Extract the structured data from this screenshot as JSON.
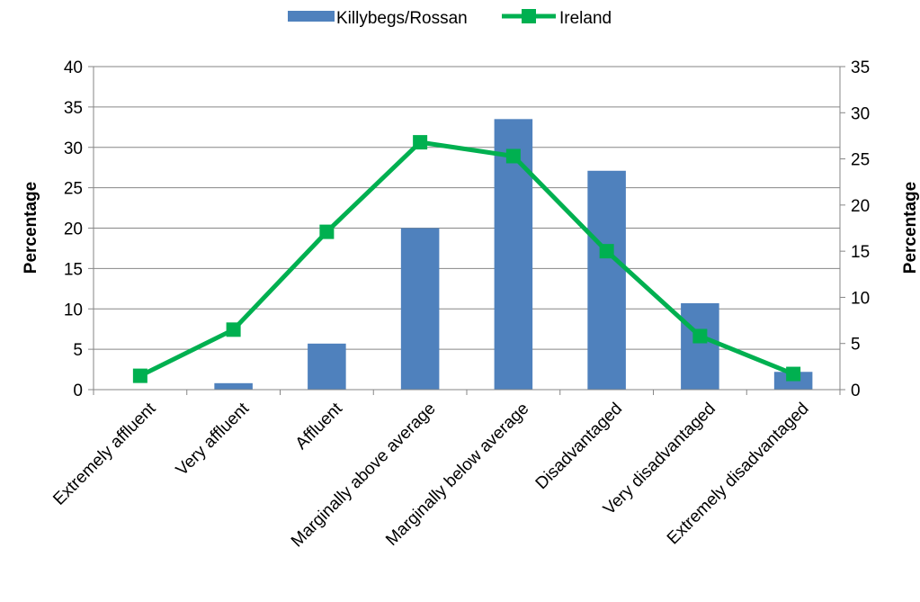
{
  "chart_data": {
    "type": "bar",
    "categories": [
      "Extremely affluent",
      "Very affluent",
      "Affluent",
      "Marginally above average",
      "Marginally below average",
      "Disadvantaged",
      "Very disadvantaged",
      "Extremely disadvantaged"
    ],
    "series": [
      {
        "name": "Killybegs/Rossan",
        "type": "bar",
        "axis": "left",
        "color": "#4F81BD",
        "values": [
          0,
          0.8,
          5.7,
          20.0,
          33.5,
          27.1,
          10.7,
          2.2
        ]
      },
      {
        "name": "Ireland",
        "type": "line",
        "axis": "right",
        "color": "#00B050",
        "values": [
          1.5,
          6.5,
          17.1,
          26.8,
          25.3,
          15.0,
          5.8,
          1.7
        ]
      }
    ],
    "ylabel": "Percentage",
    "y2label": "Percentage",
    "ylim": [
      0,
      40
    ],
    "y2lim": [
      0,
      35
    ],
    "yticks": [
      0,
      5,
      10,
      15,
      20,
      25,
      30,
      35,
      40
    ],
    "y2ticks": [
      0,
      5,
      10,
      15,
      20,
      25,
      30,
      35
    ],
    "grid": true,
    "legend_position": "top-center"
  }
}
